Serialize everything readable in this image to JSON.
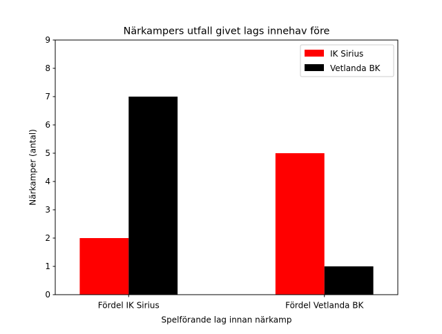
{
  "chart_data": {
    "type": "bar",
    "title": "Närkampers utfall givet lags innehav före",
    "xlabel": "Spelförande lag innan närkamp",
    "ylabel": "Närkamper (antal)",
    "categories": [
      "Fördel IK Sirius",
      "Fördel Vetlanda BK"
    ],
    "series": [
      {
        "name": "IK Sirius",
        "values": [
          2,
          5
        ],
        "color": "#ff0000"
      },
      {
        "name": "Vetlanda BK",
        "values": [
          7,
          1
        ],
        "color": "#000000"
      }
    ],
    "ylim": [
      0,
      9
    ],
    "yticks": [
      "0",
      "1",
      "2",
      "3",
      "4",
      "5",
      "6",
      "7",
      "8",
      "9"
    ],
    "grid": false,
    "legend_position": "top-right"
  }
}
